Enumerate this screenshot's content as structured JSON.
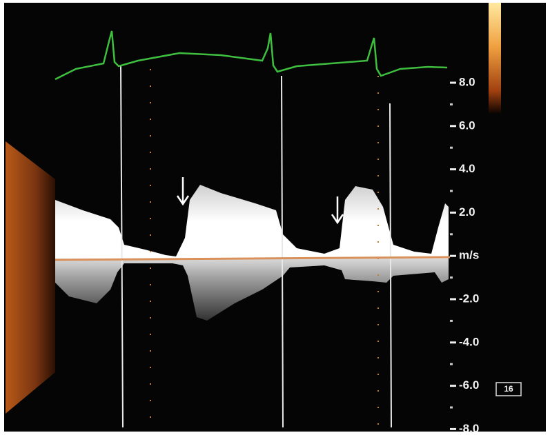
{
  "scale": {
    "labels": [
      "8.0",
      "6.0",
      "4.0",
      "2.0",
      "m/s",
      "-2.0",
      "-4.0",
      "-6.0",
      "-8.0"
    ]
  },
  "badge": "16"
}
